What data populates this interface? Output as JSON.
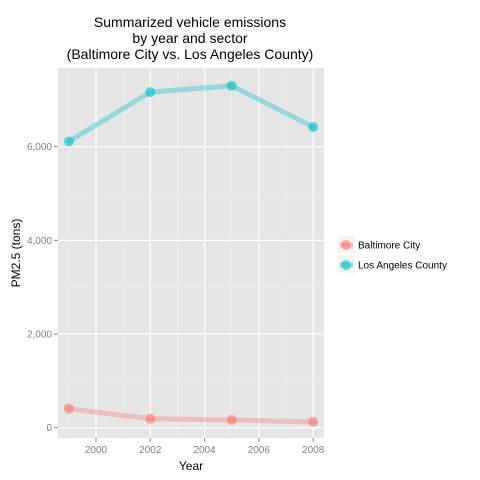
{
  "chart_data": {
    "type": "line",
    "title": [
      "Summarized vehicle emissions",
      "by year and sector",
      "(Baltimore City vs. Los Angeles County)"
    ],
    "xlabel": "Year",
    "ylabel": "PM2.5 (tons)",
    "x": [
      1999,
      2002,
      2005,
      2008
    ],
    "xlim": [
      1998.6,
      2008.4
    ],
    "ylim": [
      -220,
      7680
    ],
    "x_ticks": [
      2000,
      2002,
      2004,
      2006,
      2008
    ],
    "x_tick_labels": [
      "2000",
      "2002",
      "2004",
      "2006",
      "2008"
    ],
    "y_ticks": [
      0,
      2000,
      4000,
      6000
    ],
    "y_tick_labels": [
      "0",
      "2,000",
      "4,000",
      "6,000"
    ],
    "grid": true,
    "legend_position": "right",
    "series": [
      {
        "name": "Baltimore City",
        "values": [
          404,
          192,
          165,
          124
        ],
        "color": "#F8766D"
      },
      {
        "name": "Los Angeles County",
        "values": [
          6110,
          7165,
          7300,
          6420
        ],
        "color": "#00BFC4"
      }
    ],
    "panel_color": "#E5E5E5",
    "grid_color": "#FFFFFF"
  }
}
